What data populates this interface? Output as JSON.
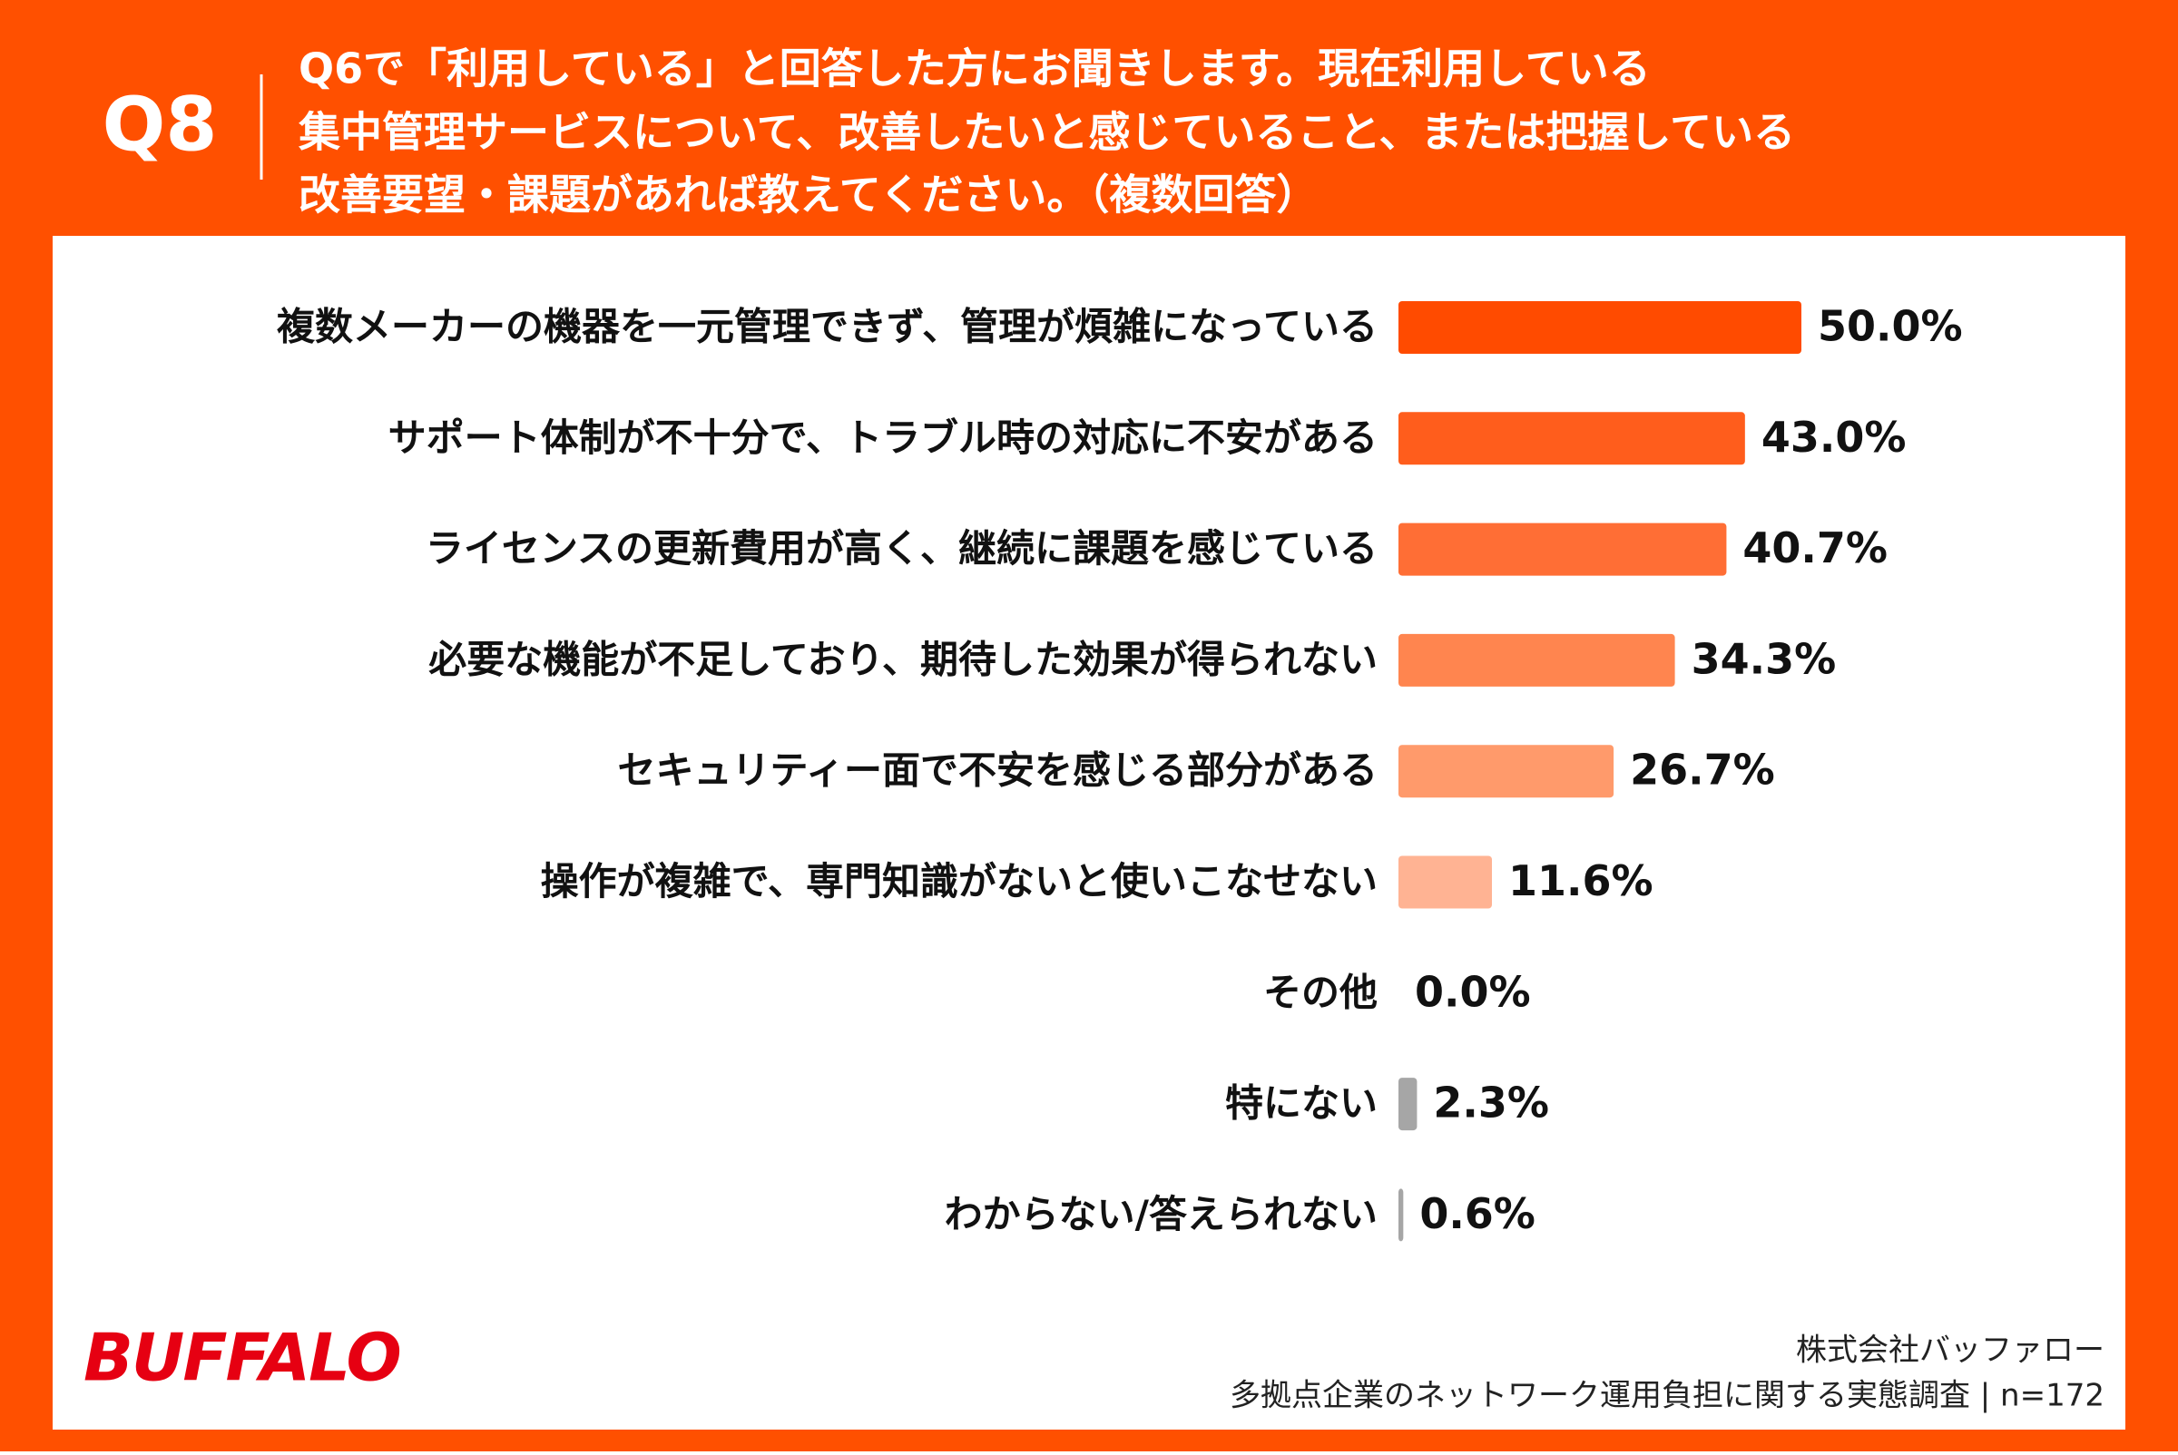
{
  "header": {
    "label": "Q8",
    "question": [
      "Q6で「利用している」と回答した方にお聞きします。現在利用している",
      "集中管理サービスについて、改善したいと感じていること、または把握している",
      "改善要望・課題があれば教えてください。（複数回答）"
    ]
  },
  "chart_data": {
    "type": "bar",
    "orientation": "horizontal",
    "categories": [
      "複数メーカーの機器を一元管理できず、管理が煩雑になっている",
      "サポート体制が不十分で、トラブル時の対応に不安がある",
      "ライセンスの更新費用が高く、継続に課題を感じている",
      "必要な機能が不足しており、期待した効果が得られない",
      "セキュリティー面で不安を感じる部分がある",
      "操作が複雑で、専門知識がないと使いこなせない",
      "その他",
      "特にない",
      "わからない/答えられない"
    ],
    "values": [
      50.0,
      43.0,
      40.7,
      34.3,
      26.7,
      11.6,
      0.0,
      2.3,
      0.6
    ],
    "value_labels": [
      "50.0%",
      "43.0%",
      "40.7%",
      "34.3%",
      "26.7%",
      "11.6%",
      "0.0%",
      "2.3%",
      "0.6%"
    ],
    "colors": [
      "#ff4b00",
      "#ff5d1c",
      "#ff6e35",
      "#ff854f",
      "#ff9a6b",
      "#ffb393",
      "#ffb393",
      "#a6a6a6",
      "#a6a6a6"
    ]
  },
  "footer": {
    "logo": "BUFFALO",
    "company": "株式会社バッファロー",
    "survey": "多拠点企業のネットワーク運用負担に関する実態調査 | n=172"
  }
}
